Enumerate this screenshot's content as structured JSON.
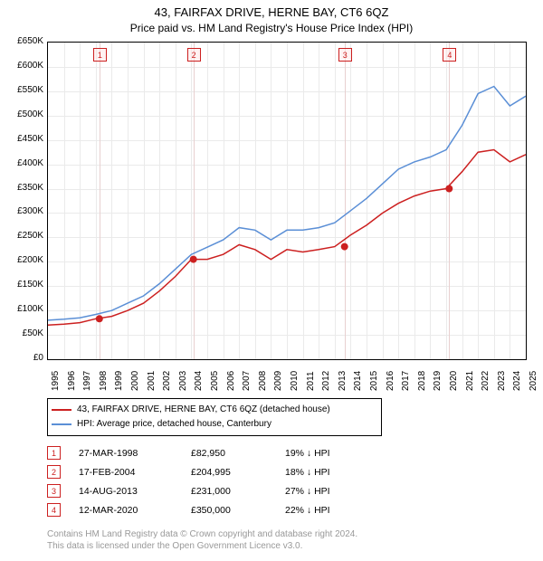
{
  "title": "43, FAIRFAX DRIVE, HERNE BAY, CT6 6QZ",
  "subtitle": "Price paid vs. HM Land Registry's House Price Index (HPI)",
  "chart": {
    "type": "line",
    "x_years": [
      1995,
      1996,
      1997,
      1998,
      1999,
      2000,
      2001,
      2002,
      2003,
      2004,
      2005,
      2006,
      2007,
      2008,
      2009,
      2010,
      2011,
      2012,
      2013,
      2014,
      2015,
      2016,
      2017,
      2018,
      2019,
      2020,
      2021,
      2022,
      2023,
      2024,
      2025
    ],
    "ylim": [
      0,
      650000
    ],
    "ytick_step": 50000,
    "ytick_labels": [
      "£0",
      "£50K",
      "£100K",
      "£150K",
      "£200K",
      "£250K",
      "£300K",
      "£350K",
      "£400K",
      "£450K",
      "£500K",
      "£550K",
      "£600K",
      "£650K"
    ],
    "background_color": "#ffffff",
    "grid_color": "#eaeaea",
    "colors": {
      "property": "#cc2020",
      "hpi": "#5b8fd6",
      "marker_fill": "#cc2020"
    },
    "line_width": 1.5,
    "series": {
      "hpi": [
        [
          1995,
          80000
        ],
        [
          1996,
          82000
        ],
        [
          1997,
          85000
        ],
        [
          1998,
          92000
        ],
        [
          1999,
          100000
        ],
        [
          2000,
          115000
        ],
        [
          2001,
          130000
        ],
        [
          2002,
          155000
        ],
        [
          2003,
          185000
        ],
        [
          2004,
          215000
        ],
        [
          2005,
          230000
        ],
        [
          2006,
          245000
        ],
        [
          2007,
          270000
        ],
        [
          2008,
          265000
        ],
        [
          2009,
          245000
        ],
        [
          2010,
          265000
        ],
        [
          2011,
          265000
        ],
        [
          2012,
          270000
        ],
        [
          2013,
          280000
        ],
        [
          2014,
          305000
        ],
        [
          2015,
          330000
        ],
        [
          2016,
          360000
        ],
        [
          2017,
          390000
        ],
        [
          2018,
          405000
        ],
        [
          2019,
          415000
        ],
        [
          2020,
          430000
        ],
        [
          2021,
          480000
        ],
        [
          2022,
          545000
        ],
        [
          2023,
          560000
        ],
        [
          2024,
          520000
        ],
        [
          2025,
          540000
        ]
      ],
      "property": [
        [
          1995,
          70000
        ],
        [
          1996,
          72000
        ],
        [
          1997,
          75000
        ],
        [
          1998,
          82950
        ],
        [
          1999,
          88000
        ],
        [
          2000,
          100000
        ],
        [
          2001,
          115000
        ],
        [
          2002,
          140000
        ],
        [
          2003,
          170000
        ],
        [
          2004,
          204995
        ],
        [
          2005,
          205000
        ],
        [
          2006,
          215000
        ],
        [
          2007,
          235000
        ],
        [
          2008,
          225000
        ],
        [
          2009,
          205000
        ],
        [
          2010,
          225000
        ],
        [
          2011,
          220000
        ],
        [
          2012,
          225000
        ],
        [
          2013,
          231000
        ],
        [
          2014,
          255000
        ],
        [
          2015,
          275000
        ],
        [
          2016,
          300000
        ],
        [
          2017,
          320000
        ],
        [
          2018,
          335000
        ],
        [
          2019,
          345000
        ],
        [
          2020,
          350000
        ],
        [
          2021,
          385000
        ],
        [
          2022,
          425000
        ],
        [
          2023,
          430000
        ],
        [
          2024,
          405000
        ],
        [
          2025,
          420000
        ]
      ]
    },
    "markers": [
      {
        "n": "1",
        "year": 1998.23,
        "price": 82950
      },
      {
        "n": "2",
        "year": 2004.13,
        "price": 204995
      },
      {
        "n": "3",
        "year": 2013.62,
        "price": 231000
      },
      {
        "n": "4",
        "year": 2020.19,
        "price": 350000
      }
    ]
  },
  "legend": {
    "rows": [
      {
        "color": "#cc2020",
        "label": "43, FAIRFAX DRIVE, HERNE BAY, CT6 6QZ (detached house)"
      },
      {
        "color": "#5b8fd6",
        "label": "HPI: Average price, detached house, Canterbury"
      }
    ]
  },
  "transactions": [
    {
      "n": "1",
      "date": "27-MAR-1998",
      "price": "£82,950",
      "delta": "19% ↓ HPI"
    },
    {
      "n": "2",
      "date": "17-FEB-2004",
      "price": "£204,995",
      "delta": "18% ↓ HPI"
    },
    {
      "n": "3",
      "date": "14-AUG-2013",
      "price": "£231,000",
      "delta": "27% ↓ HPI"
    },
    {
      "n": "4",
      "date": "12-MAR-2020",
      "price": "£350,000",
      "delta": "22% ↓ HPI"
    }
  ],
  "attribution": {
    "l1": "Contains HM Land Registry data © Crown copyright and database right 2024.",
    "l2": "This data is licensed under the Open Government Licence v3.0."
  }
}
